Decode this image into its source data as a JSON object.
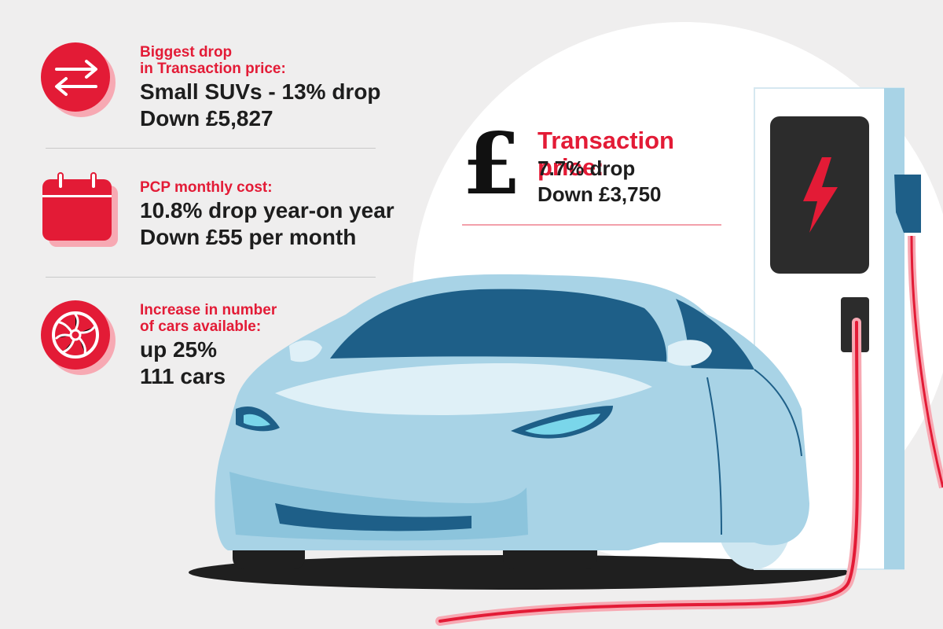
{
  "stats": [
    {
      "icon": "arrows-exchange-icon",
      "heading": "Biggest drop\nin Transaction price:",
      "value": "Small SUVs - 13% drop\nDown £5,827"
    },
    {
      "icon": "calendar-icon",
      "heading": "PCP monthly cost:",
      "value": "10.8% drop year-on year\nDown £55 per month"
    },
    {
      "icon": "wheel-icon",
      "heading": "Increase in number\nof cars available:",
      "value": "up 25%\n111 cars"
    }
  ],
  "feature": {
    "symbol": "£",
    "heading": "Transaction price:",
    "value": "7.7% drop\nDown £3,750"
  },
  "colors": {
    "accent": "#e31b36",
    "accent_light": "#f7a9b3",
    "background": "#efeeee",
    "car_body": "#a8d3e6",
    "car_dark": "#1e5f88",
    "charger": "#ffffff",
    "charger_screen": "#2c2c2c"
  }
}
